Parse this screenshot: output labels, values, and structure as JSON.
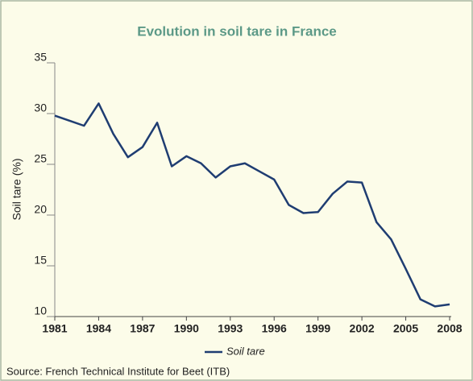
{
  "chart_data": {
    "type": "line",
    "title": "Evolution in soil tare in France",
    "y_label": "Soil tare (%)",
    "source": "Source: French Technical Institute for Beet (ITB)",
    "x": [
      1981,
      1982,
      1983,
      1984,
      1985,
      1986,
      1987,
      1988,
      1989,
      1990,
      1991,
      1992,
      1993,
      1994,
      1995,
      1996,
      1997,
      1998,
      1999,
      2000,
      2001,
      2002,
      2003,
      2004,
      2005,
      2006,
      2007,
      2008
    ],
    "series": [
      {
        "name": "Soil tare",
        "color": "#1f3d72",
        "values": [
          29.8,
          29.3,
          28.8,
          31.0,
          28.0,
          25.7,
          26.7,
          29.1,
          24.8,
          25.8,
          25.1,
          23.7,
          24.8,
          25.1,
          24.3,
          23.5,
          21.0,
          20.2,
          20.3,
          22.1,
          23.3,
          23.2,
          19.3,
          17.6,
          14.7,
          11.7,
          11.0,
          11.2
        ]
      }
    ],
    "xlim": [
      1981,
      2008
    ],
    "xticks": [
      1981,
      1984,
      1987,
      1990,
      1993,
      1996,
      1999,
      2002,
      2005,
      2008
    ],
    "ylim": [
      10,
      35
    ],
    "yticks": [
      10,
      15,
      20,
      25,
      30,
      35
    ],
    "grid": false
  }
}
